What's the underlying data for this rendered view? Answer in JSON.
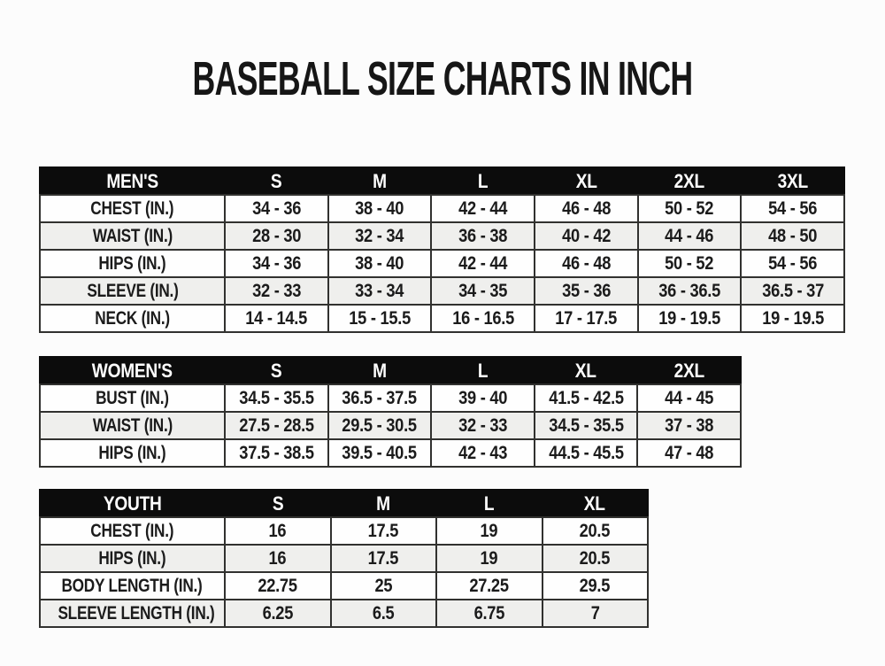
{
  "page": {
    "title": "BASEBALL SIZE CHARTS IN INCH"
  },
  "tables": [
    {
      "id": "mens",
      "title": "MEN'S",
      "header": [
        "MEN'S",
        "S",
        "M",
        "L",
        "XL",
        "2XL",
        "3XL"
      ],
      "rows": [
        [
          "CHEST (IN.)",
          "34 - 36",
          "38 - 40",
          "42 - 44",
          "46 - 48",
          "50 - 52",
          "54 - 56"
        ],
        [
          "WAIST (IN.)",
          "28 - 30",
          "32 - 34",
          "36 - 38",
          "40 - 42",
          "44 - 46",
          "48 - 50"
        ],
        [
          "HIPS (IN.)",
          "34 - 36",
          "38 - 40",
          "42 - 44",
          "46 - 48",
          "50 - 52",
          "54 - 56"
        ],
        [
          "SLEEVE (IN.)",
          "32 - 33",
          "33 - 34",
          "34 - 35",
          "35 - 36",
          "36 - 36.5",
          "36.5 - 37"
        ],
        [
          "NECK (IN.)",
          "14 - 14.5",
          "15 - 15.5",
          "16 - 16.5",
          "17 - 17.5",
          "19 - 19.5",
          "19 - 19.5"
        ]
      ]
    },
    {
      "id": "womens",
      "title": "WOMEN'S",
      "header": [
        "WOMEN'S",
        "S",
        "M",
        "L",
        "XL",
        "2XL"
      ],
      "rows": [
        [
          "BUST (IN.)",
          "34.5 - 35.5",
          "36.5 - 37.5",
          "39 - 40",
          "41.5 - 42.5",
          "44 - 45"
        ],
        [
          "WAIST (IN.)",
          "27.5 - 28.5",
          "29.5 - 30.5",
          "32 - 33",
          "34.5 - 35.5",
          "37 - 38"
        ],
        [
          "HIPS (IN.)",
          "37.5 - 38.5",
          "39.5 - 40.5",
          "42 - 43",
          "44.5 - 45.5",
          "47 - 48"
        ]
      ]
    },
    {
      "id": "youth",
      "title": "YOUTH",
      "header": [
        "YOUTH",
        "S",
        "M",
        "L",
        "XL"
      ],
      "rows": [
        [
          "CHEST (IN.)",
          "16",
          "17.5",
          "19",
          "20.5"
        ],
        [
          "HIPS (IN.)",
          "16",
          "17.5",
          "19",
          "20.5"
        ],
        [
          "BODY LENGTH (IN.)",
          "22.75",
          "25",
          "27.25",
          "29.5"
        ],
        [
          "SLEEVE LENGTH (IN.)",
          "6.25",
          "6.5",
          "6.75",
          "7"
        ]
      ]
    }
  ],
  "colors": {
    "page_bg": "#fcfcfc",
    "header_bg": "#0c0c0c",
    "header_text": "#ffffff",
    "row_plain": "#fefefe",
    "row_shaded": "#efefed",
    "border": "#31312f",
    "title_text": "#161616",
    "value_text": "#1b1b1b"
  }
}
